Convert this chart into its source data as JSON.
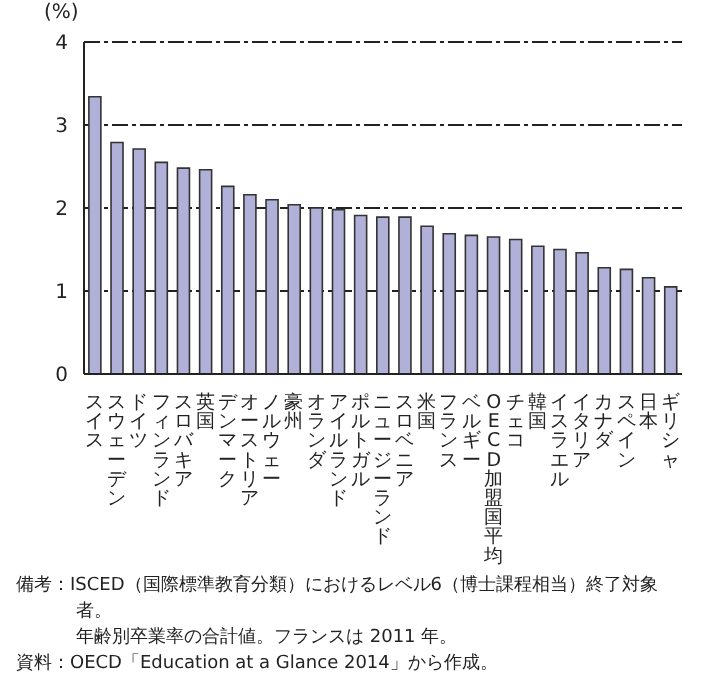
{
  "chart_data": {
    "type": "bar",
    "ylabel": "(%)",
    "categories": [
      "スイス",
      "スウェーデン",
      "ドイツ",
      "フィンランド",
      "スロバキア",
      "英国",
      "デンマーク",
      "オーストリア",
      "ノルウェー",
      "豪州",
      "オランダ",
      "アイルランド",
      "ポルトガル",
      "ニュージーランド",
      "スロベニア",
      "米国",
      "フランス",
      "ベルギー",
      "OECD加盟国平均",
      "チェコ",
      "韓国",
      "イスラエル",
      "イタリア",
      "カナダ",
      "スペイン",
      "日本",
      "ギリシャ"
    ],
    "values": [
      3.34,
      2.79,
      2.71,
      2.55,
      2.48,
      2.46,
      2.26,
      2.16,
      2.1,
      2.04,
      2.0,
      1.98,
      1.91,
      1.89,
      1.89,
      1.78,
      1.69,
      1.67,
      1.65,
      1.62,
      1.54,
      1.5,
      1.46,
      1.28,
      1.26,
      1.16,
      1.05
    ],
    "color": "#b0b0d8",
    "ylim": [
      0,
      4
    ],
    "yticks": [
      0,
      1,
      2,
      3,
      4
    ],
    "grid": "y",
    "annotations": [
      "備考：ISCED（国際標準教育分類）におけるレベル6（博士課程相当）終了対象者。",
      "年齢別卒業率の合計値。フランスは 2011 年。",
      "資料：OECD「Education at a Glance 2014」から作成。"
    ]
  }
}
